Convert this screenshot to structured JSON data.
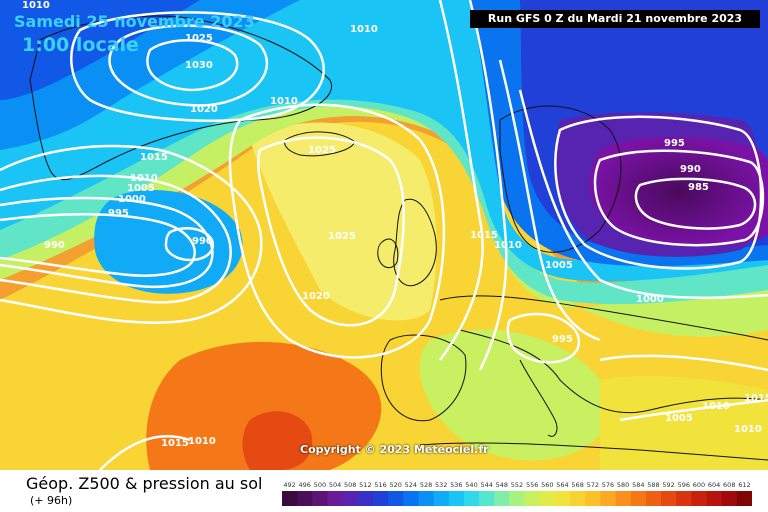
{
  "header": {
    "date_title": "Samedi 25 novembre 2023",
    "time_title": "1:00 locale",
    "run_info": "Run GFS 0 Z du Mardi 21 novembre 2023"
  },
  "copyright": "Copyright © 2023 Meteociel.fr",
  "footer": {
    "title": "Géop. Z500 & pression au sol",
    "subtitle": "(+ 96h)"
  },
  "legend": {
    "values": [
      "492",
      "496",
      "500",
      "504",
      "508",
      "512",
      "516",
      "520",
      "524",
      "528",
      "532",
      "536",
      "540",
      "544",
      "548",
      "552",
      "556",
      "560",
      "564",
      "568",
      "572",
      "576",
      "580",
      "584",
      "588",
      "592",
      "596",
      "600",
      "604",
      "608",
      "612"
    ],
    "colors": [
      "#3b0a3e",
      "#4c0e5a",
      "#5e1377",
      "#6a1b96",
      "#5624b0",
      "#3a2fc6",
      "#2040d8",
      "#1258e6",
      "#0a74f0",
      "#0a90f4",
      "#10aaf6",
      "#1ac4f4",
      "#30d8ea",
      "#56e6cc",
      "#80eea8",
      "#a8f280",
      "#c8f060",
      "#e2ec48",
      "#f2e23c",
      "#f8d232",
      "#fcc02a",
      "#fca824",
      "#f8901e",
      "#f47818",
      "#ee6014",
      "#e44a12",
      "#d83410",
      "#c8220e",
      "#b8140c",
      "#a00a0a",
      "#800606"
    ]
  },
  "pressure_labels": [
    {
      "text": "1010",
      "id": "isobar-label-1010-top"
    },
    {
      "text": "1025",
      "id": "isobar-label-1025-a"
    },
    {
      "text": "1010",
      "id": "isobar-label-1010-b"
    },
    {
      "text": "1030",
      "id": "isobar-label-1030"
    },
    {
      "text": "1020",
      "id": "isobar-label-1020-a"
    },
    {
      "text": "1010",
      "id": "isobar-label-1010-c"
    },
    {
      "text": "1015",
      "id": "isobar-label-1015-a"
    },
    {
      "text": "1025",
      "id": "isobar-label-1025-b"
    },
    {
      "text": "1010",
      "id": "isobar-label-1010-d"
    },
    {
      "text": "1005",
      "id": "isobar-label-1005-a"
    },
    {
      "text": "1000",
      "id": "isobar-label-1000-a"
    },
    {
      "text": "995",
      "id": "isobar-label-995-a"
    },
    {
      "text": "990",
      "id": "isobar-label-990-a"
    },
    {
      "text": "990",
      "id": "isobar-label-990-b"
    },
    {
      "text": "1025",
      "id": "isobar-label-1025-c"
    },
    {
      "text": "1020",
      "id": "isobar-label-1020-b"
    },
    {
      "text": "1015",
      "id": "isobar-label-1015-b"
    },
    {
      "text": "1010",
      "id": "isobar-label-1010-e"
    },
    {
      "text": "1005",
      "id": "isobar-label-1005-b"
    },
    {
      "text": "1000",
      "id": "isobar-label-1000-b"
    },
    {
      "text": "995",
      "id": "isobar-label-995-b"
    },
    {
      "text": "990",
      "id": "isobar-label-990-c"
    },
    {
      "text": "985",
      "id": "isobar-label-985"
    },
    {
      "text": "995",
      "id": "isobar-label-995-c"
    },
    {
      "text": "1005",
      "id": "isobar-label-1005-c"
    },
    {
      "text": "1010",
      "id": "isobar-label-1010-f"
    },
    {
      "text": "1010",
      "id": "isobar-label-1010-g"
    },
    {
      "text": "1015",
      "id": "isobar-label-1015-c"
    },
    {
      "text": "1015",
      "id": "isobar-label-1015-d"
    },
    {
      "text": "1010",
      "id": "isobar-label-1010-h"
    }
  ]
}
